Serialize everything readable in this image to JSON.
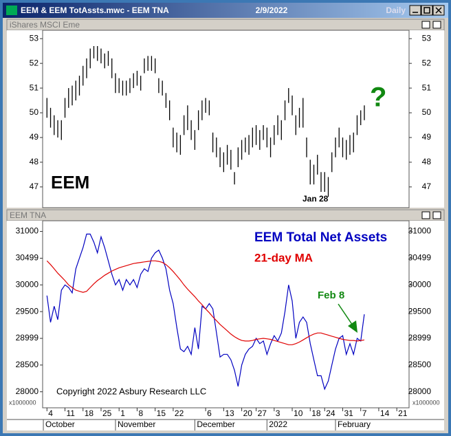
{
  "window": {
    "title": "EEM & EEM TotAssts.mwc - EEM TNA",
    "date": "2/9/2022",
    "period": "Daily"
  },
  "chart_data": [
    {
      "type": "ohlc",
      "title": "iShares MSCI Eme",
      "color": "#000000",
      "annotations": [
        "EEM",
        "?",
        "Jan 28"
      ],
      "xlim": [
        -1.2,
        100.4
      ],
      "ylim": [
        46.16,
        53.34
      ],
      "yticks": [
        47,
        48,
        49,
        50,
        51,
        52,
        53
      ],
      "high": [
        50.6,
        50.2,
        49.9,
        49.7,
        49.7,
        50.6,
        51.0,
        51.1,
        51.3,
        51.5,
        51.9,
        52.2,
        52.6,
        52.7,
        52.7,
        52.6,
        52.4,
        52.5,
        52.2,
        51.6,
        51.4,
        51.3,
        51.3,
        51.4,
        51.6,
        51.7,
        51.5,
        52.2,
        52.3,
        52.3,
        52.2,
        51.4,
        51.3,
        50.8,
        50.5,
        49.4,
        49.2,
        49.1,
        49.9,
        50.3,
        49.7,
        49.3,
        50.1,
        50.5,
        50.6,
        50.5,
        49.2,
        49.0,
        48.6,
        48.4,
        48.7,
        48.5,
        47.6,
        48.6,
        48.9,
        49.0,
        49.1,
        49.4,
        49.5,
        49.3,
        49.5,
        49.4,
        49.0,
        49.5,
        49.9,
        49.7,
        50.5,
        51.0,
        50.7,
        49.9,
        50.2,
        50.6,
        49.0,
        48.1,
        47.9,
        48.3,
        47.6,
        47.6,
        47.4,
        48.4,
        49.0,
        49.4,
        49.0,
        48.9,
        49.1,
        49.2,
        49.9,
        50.1,
        50.3
      ],
      "low": [
        49.8,
        49.4,
        49.1,
        49.0,
        48.9,
        49.8,
        50.2,
        50.3,
        50.5,
        50.7,
        51.1,
        51.4,
        51.8,
        52.2,
        52.1,
        52.0,
        51.8,
        51.9,
        51.4,
        50.8,
        50.8,
        50.7,
        50.7,
        50.8,
        51.0,
        51.1,
        50.9,
        51.6,
        51.7,
        51.7,
        51.6,
        50.8,
        50.7,
        50.2,
        49.7,
        48.6,
        48.4,
        48.3,
        49.1,
        49.3,
        48.9,
        48.5,
        49.3,
        49.7,
        50.0,
        49.9,
        48.4,
        48.2,
        47.8,
        47.6,
        47.9,
        47.7,
        47.1,
        47.8,
        48.1,
        48.4,
        48.3,
        48.6,
        48.7,
        48.5,
        48.9,
        48.6,
        48.2,
        48.7,
        49.1,
        48.9,
        49.7,
        50.4,
        49.9,
        49.1,
        49.4,
        49.4,
        48.2,
        47.1,
        47.1,
        47.5,
        46.8,
        46.8,
        46.6,
        47.6,
        48.2,
        48.6,
        48.2,
        48.1,
        48.3,
        48.4,
        49.1,
        49.5,
        49.7
      ]
    },
    {
      "type": "line",
      "title": "EEM TNA",
      "y_unit": "x1000000",
      "annotations": [
        "Feb 8",
        "Copyright 2022 Asbury Research LLC"
      ],
      "xlim": [
        -1.2,
        100.4
      ],
      "ylim": [
        27700,
        31200
      ],
      "yticks": [
        28000,
        28500,
        28999,
        29500,
        30000,
        30499,
        31000
      ],
      "xticks": [
        {
          "value": 0,
          "label": "4"
        },
        {
          "value": 5,
          "label": "11"
        },
        {
          "value": 10,
          "label": "18"
        },
        {
          "value": 15,
          "label": "25"
        },
        {
          "value": 20,
          "label": "1"
        },
        {
          "value": 25,
          "label": "8"
        },
        {
          "value": 30,
          "label": "15"
        },
        {
          "value": 35,
          "label": "22"
        },
        {
          "value": 44,
          "label": "6"
        },
        {
          "value": 49,
          "label": "13"
        },
        {
          "value": 54,
          "label": "20"
        },
        {
          "value": 58,
          "label": "27"
        },
        {
          "value": 63,
          "label": "3"
        },
        {
          "value": 68,
          "label": "10"
        },
        {
          "value": 73,
          "label": "18"
        },
        {
          "value": 77,
          "label": "24"
        },
        {
          "value": 82,
          "label": "31"
        },
        {
          "value": 87,
          "label": "7"
        },
        {
          "value": 92,
          "label": "14"
        },
        {
          "value": 97,
          "label": "21"
        }
      ],
      "xmonths": [
        {
          "value": -1,
          "label": "October"
        },
        {
          "value": 19,
          "label": "November"
        },
        {
          "value": 41,
          "label": "December"
        },
        {
          "value": 61,
          "label": "2022"
        },
        {
          "value": 80,
          "label": "February"
        }
      ],
      "series": [
        {
          "name": "EEM Total Net Assets",
          "color": "#0000c0",
          "values": [
            29800,
            29300,
            29600,
            29350,
            29900,
            30000,
            29950,
            29850,
            30300,
            30500,
            30700,
            30950,
            30950,
            30800,
            30600,
            30900,
            30700,
            30450,
            30200,
            30000,
            30100,
            29900,
            30100,
            30000,
            30100,
            29950,
            30200,
            30300,
            30250,
            30500,
            30600,
            30650,
            30500,
            30300,
            29900,
            29650,
            29200,
            28800,
            28750,
            28850,
            28700,
            29200,
            28800,
            29600,
            29550,
            29650,
            29550,
            29100,
            28650,
            28700,
            28700,
            28600,
            28400,
            28100,
            28500,
            28700,
            28800,
            28850,
            29000,
            28900,
            28950,
            28700,
            28900,
            29050,
            28950,
            29100,
            29500,
            30000,
            29700,
            29000,
            29300,
            29400,
            29300,
            28900,
            28600,
            28300,
            28300,
            28050,
            28200,
            28500,
            28800,
            29000,
            29050,
            28700,
            28900,
            28700,
            29000,
            28950,
            29450
          ]
        },
        {
          "name": "21-day MA",
          "color": "#e00000",
          "values": [
            30450,
            30380,
            30300,
            30220,
            30150,
            30080,
            30000,
            29950,
            29900,
            29880,
            29860,
            29880,
            29950,
            30020,
            30080,
            30130,
            30180,
            30220,
            30260,
            30290,
            30320,
            30340,
            30360,
            30380,
            30400,
            30410,
            30420,
            30430,
            30440,
            30450,
            30450,
            30440,
            30420,
            30380,
            30320,
            30250,
            30170,
            30090,
            30000,
            29920,
            29850,
            29780,
            29700,
            29630,
            29550,
            29480,
            29400,
            29330,
            29260,
            29200,
            29140,
            29080,
            29030,
            28990,
            28960,
            28950,
            28950,
            28960,
            28980,
            28990,
            29000,
            28990,
            28980,
            28960,
            28940,
            28920,
            28900,
            28880,
            28880,
            28900,
            28930,
            28970,
            29010,
            29050,
            29080,
            29100,
            29100,
            29080,
            29060,
            29040,
            29020,
            29000,
            28980,
            28970,
            28960,
            28960,
            28950,
            28960,
            28970
          ]
        }
      ]
    }
  ]
}
